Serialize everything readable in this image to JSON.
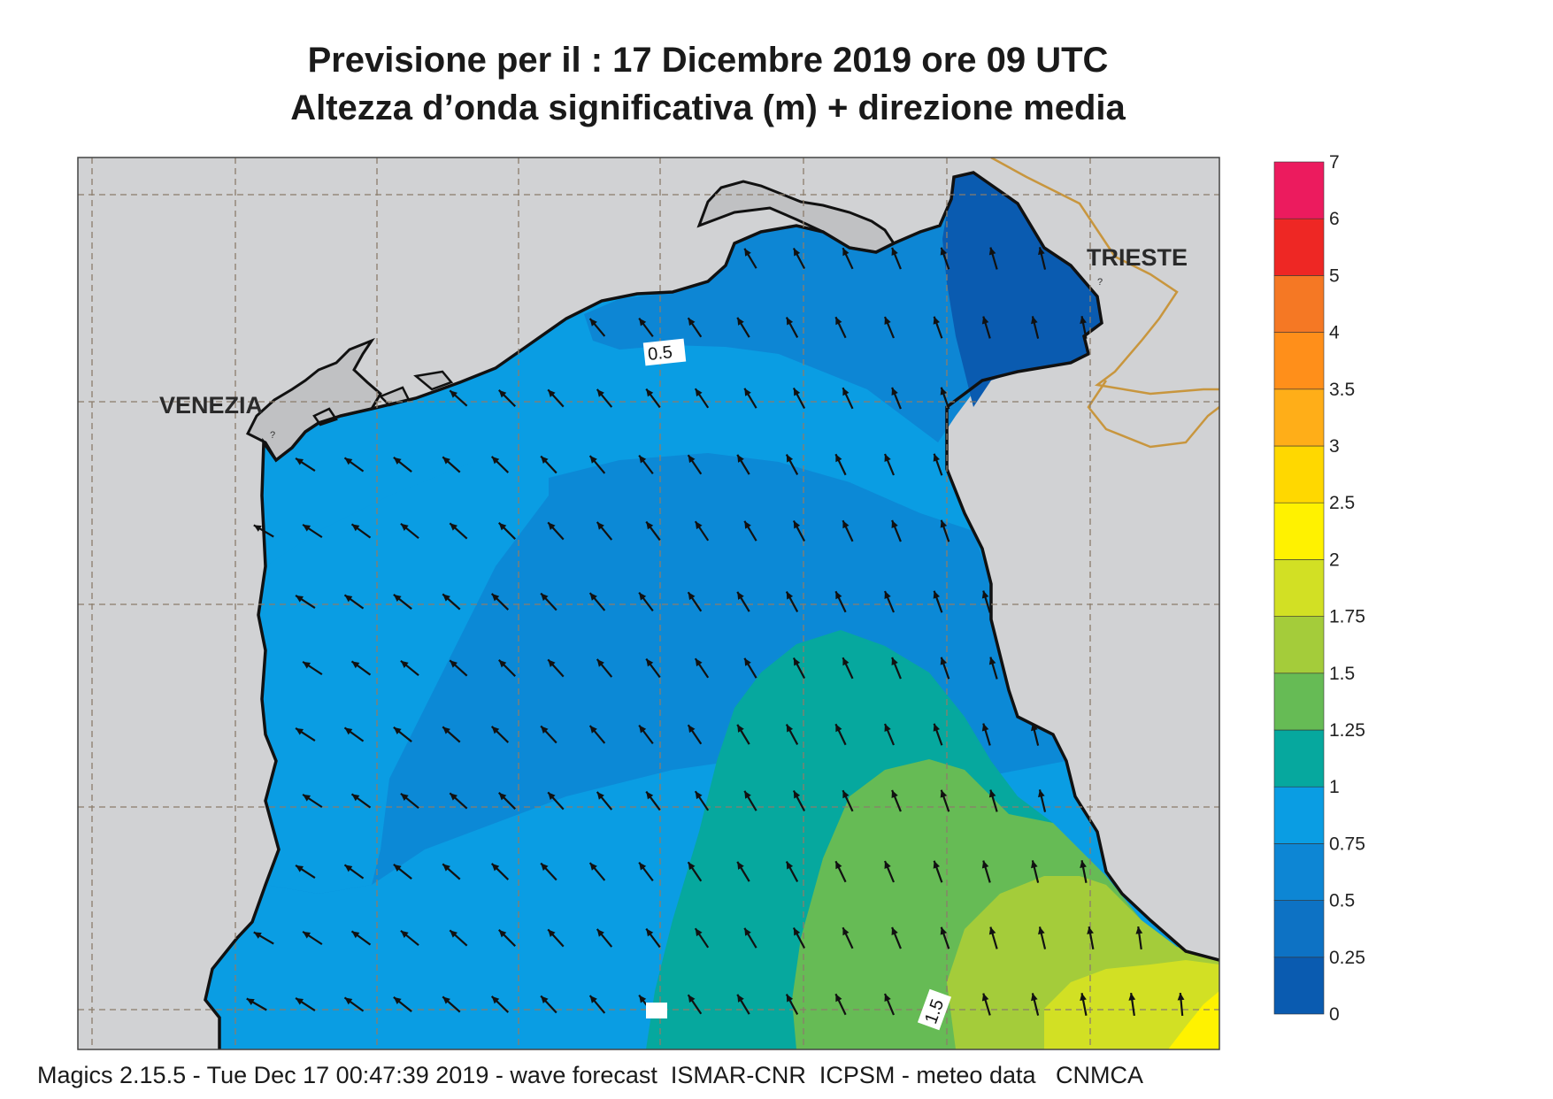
{
  "header": {
    "line1": "Previsione per il  :  17 Dicembre  2019   ore 09 UTC",
    "line2": "Altezza d’onda significativa (m) + direzione media"
  },
  "places": {
    "venezia": "VENEZIA",
    "trieste": "TRIESTE"
  },
  "contour_labels": [
    "0.5",
    "1.5"
  ],
  "footer": "Magics 2.15.5 - Tue Dec 17 00:47:39 2019 - wave forecast  ISMAR-CNR  ICPSM - meteo data   CNMCA",
  "legend": {
    "ticks": [
      "0",
      "0.25",
      "0.5",
      "0.75",
      "1",
      "1.25",
      "1.5",
      "1.75",
      "2",
      "2.5",
      "3",
      "3.5",
      "4",
      "5",
      "6",
      "7"
    ],
    "colors": [
      "#0a5bb0",
      "#0d72c4",
      "#0d86d4",
      "#0a9de3",
      "#06a89e",
      "#66bb55",
      "#a4cc3a",
      "#d2e024",
      "#fff200",
      "#ffd800",
      "#ffae18",
      "#ff8f1a",
      "#f57824",
      "#ee2724",
      "#ec1b5e"
    ]
  },
  "map": {
    "land_color": "#d1d2d4",
    "sea_color": "#0a9de3",
    "wave_direction": "north-west"
  }
}
